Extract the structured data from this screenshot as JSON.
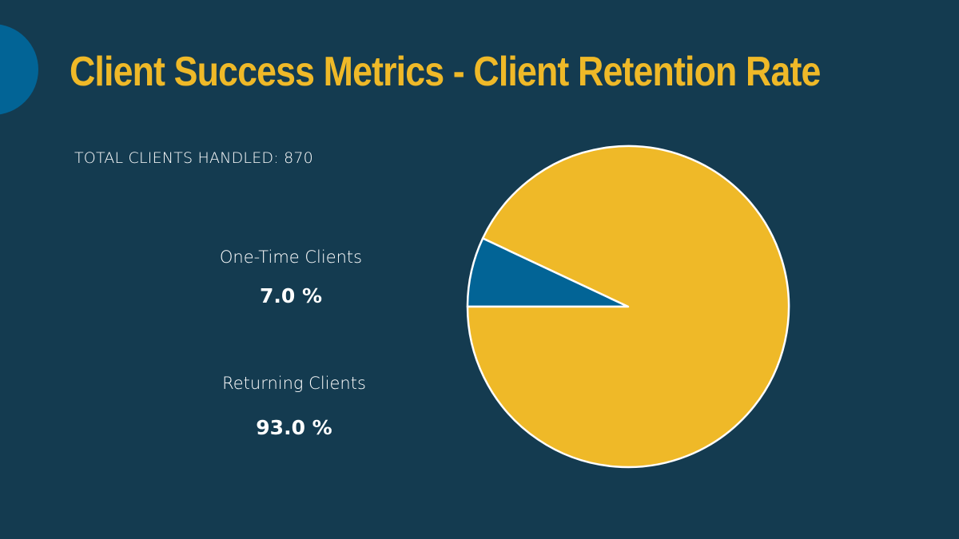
{
  "colors": {
    "background": "#143b50",
    "accent_yellow": "#efb928",
    "accent_blue": "#026496",
    "text": "#ffffff",
    "slice_stroke": "#ffffff"
  },
  "header": {
    "title": "Client Success Metrics - Client Retention Rate"
  },
  "summary": {
    "total_label": "TOTAL CLIENTS HANDLED: 870"
  },
  "legend": [
    {
      "label": "One-Time Clients",
      "value": "7.0 %"
    },
    {
      "label": "Returning Clients",
      "value": "93.0 %"
    }
  ],
  "chart_data": {
    "type": "pie",
    "title": "Client Retention Rate",
    "total": 870,
    "categories": [
      "One-Time Clients",
      "Returning Clients"
    ],
    "values": [
      7.0,
      93.0
    ],
    "unit": "%",
    "colors": [
      "#026496",
      "#efb928"
    ],
    "start_angle_deg": 180,
    "direction": "clockwise",
    "legend_position": "left"
  }
}
